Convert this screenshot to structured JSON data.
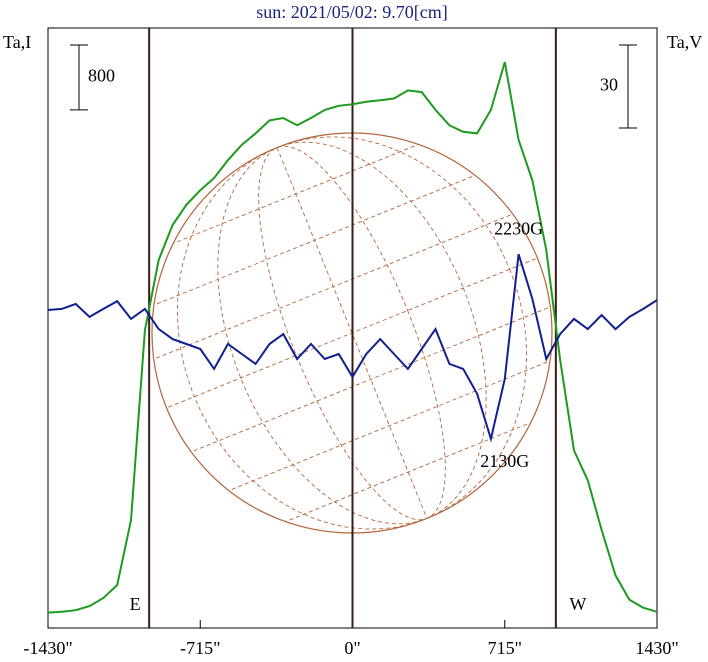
{
  "chart_data": {
    "type": "line",
    "title": "sun: 2021/05/02: 9.70[cm]",
    "y_label": "Ta,I",
    "y2_label": "Ta,V",
    "x": [
      -1430,
      -1365,
      -1300,
      -1235,
      -1170,
      -1105,
      -1040,
      -975,
      -910,
      -845,
      -780,
      -715,
      -650,
      -585,
      -520,
      -455,
      -390,
      -325,
      -260,
      -195,
      -130,
      -65,
      0,
      65,
      130,
      195,
      260,
      325,
      390,
      455,
      520,
      585,
      650,
      715,
      780,
      845,
      910,
      975,
      1040,
      1105,
      1170,
      1235,
      1300,
      1365,
      1430
    ],
    "series": [
      {
        "name": "Ta,I",
        "color": "#1e9a1e",
        "axis": "y",
        "values": [
          190,
          200,
          220,
          270,
          370,
          530,
          1330,
          3670,
          4540,
          4970,
          5220,
          5400,
          5550,
          5770,
          5960,
          6100,
          6260,
          6290,
          6200,
          6290,
          6390,
          6440,
          6460,
          6490,
          6510,
          6530,
          6630,
          6610,
          6390,
          6200,
          6120,
          6100,
          6390,
          6980,
          6020,
          5520,
          4660,
          3310,
          2190,
          1820,
          1210,
          650,
          350,
          250,
          200
        ]
      },
      {
        "name": "Ta,V",
        "color": "#10208f",
        "axis": "y2",
        "values": [
          0,
          0.4,
          2.2,
          -2.5,
          0.4,
          3.2,
          -3.2,
          0.4,
          -6.9,
          -10.5,
          -12.3,
          -14.1,
          -21.3,
          -12.3,
          -15.9,
          -19.5,
          -12.3,
          -8.7,
          -17.7,
          -12.3,
          -17.7,
          -15.9,
          -24.2,
          -15.9,
          -10.5,
          -15.9,
          -21.3,
          -14.1,
          -6.9,
          -19.5,
          -21.3,
          -30.3,
          -46.6,
          -24.9,
          20.2,
          4.0,
          -17.7,
          -8.7,
          -3.2,
          -6.9,
          -1.8,
          -6.9,
          -2.5,
          0.4,
          3.6
        ]
      }
    ],
    "xlim": [
      -1430,
      1430
    ],
    "xticks": [
      {
        "value": -1430,
        "label": "-1430\""
      },
      {
        "value": -715,
        "label": "-715\""
      },
      {
        "value": 0,
        "label": "0\""
      },
      {
        "value": 715,
        "label": "715\""
      },
      {
        "value": 1430,
        "label": "1430\""
      }
    ],
    "ylim": [
      0,
      7400
    ],
    "y2lim": [
      -115,
      102
    ],
    "scale_bars": [
      {
        "axis": "y",
        "value": 800
      },
      {
        "axis": "y2",
        "value": 30
      }
    ],
    "limb_lines": [
      {
        "value": -955,
        "label": "E"
      },
      {
        "value": 955,
        "label": "W"
      }
    ],
    "annotations": [
      {
        "text": "2230G",
        "x": 780,
        "axis": "y2",
        "y": 20.2
      },
      {
        "text": "2130G",
        "x": 715,
        "axis": "y2",
        "y": -46.6
      }
    ]
  }
}
